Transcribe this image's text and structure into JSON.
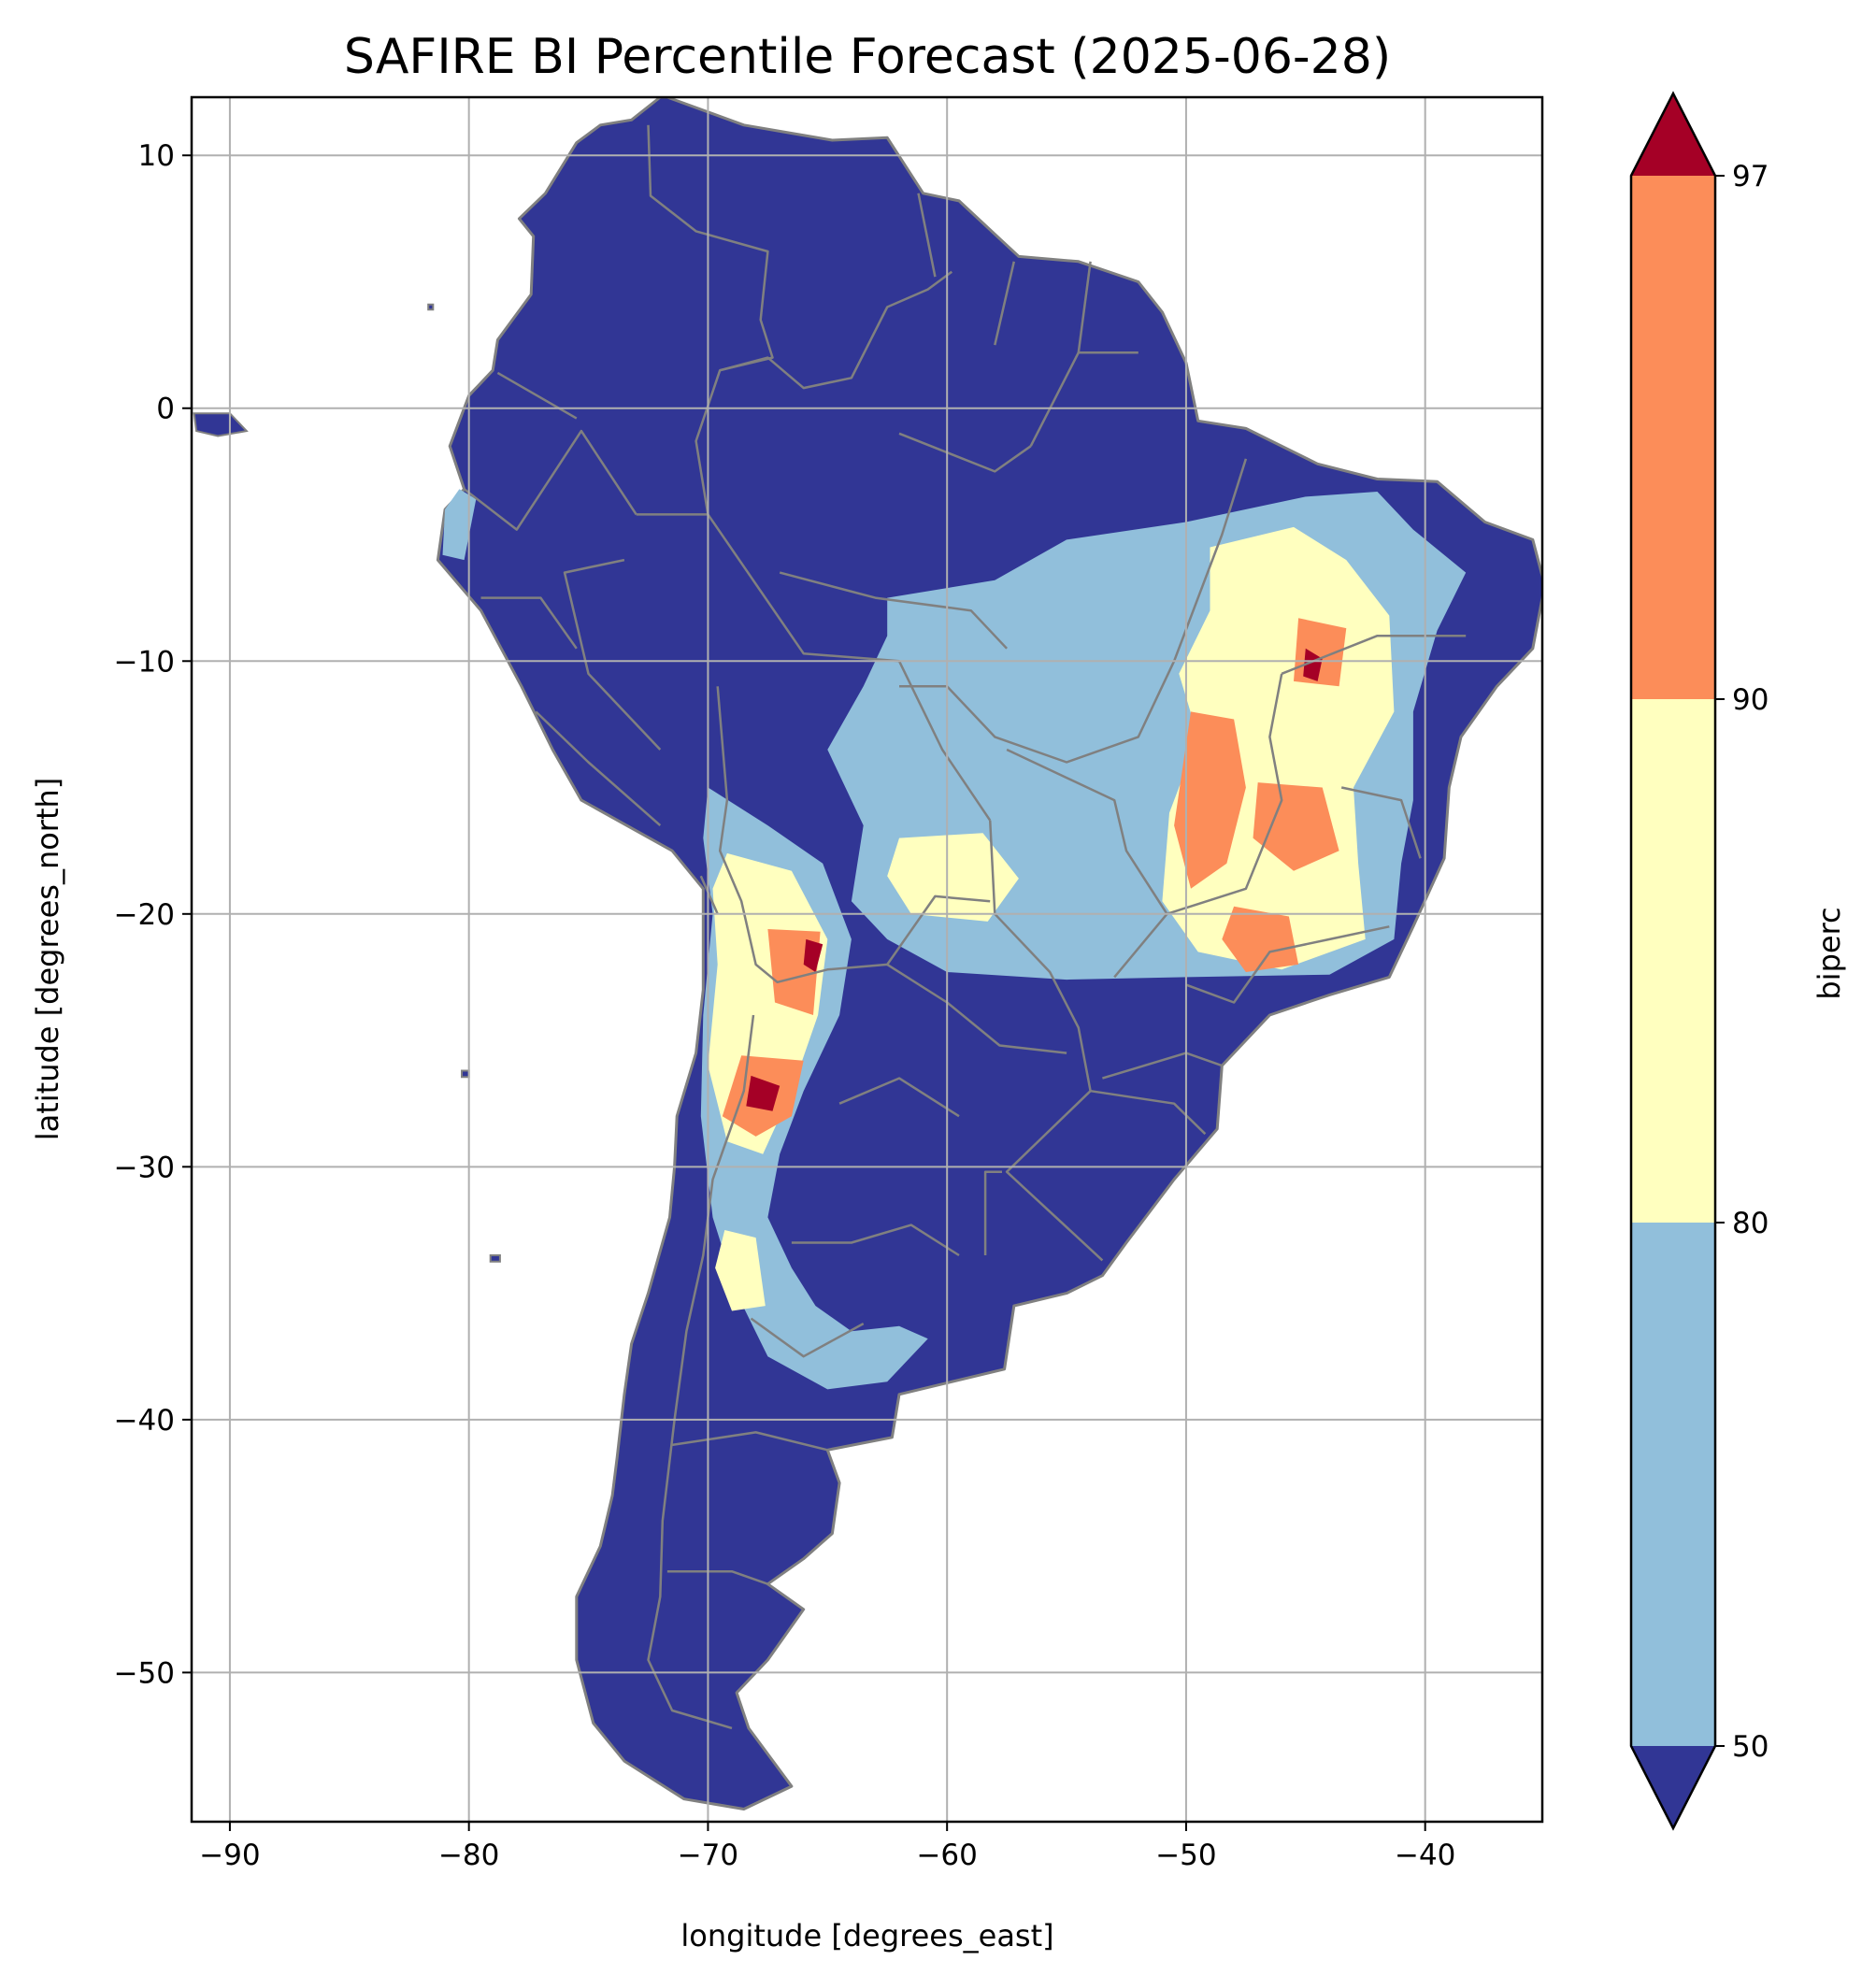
{
  "title": "SAFIRE BI Percentile Forecast (2025-06-28)",
  "map": {
    "xlabel": "longitude [degrees_east]",
    "ylabel": "latitude [degrees_north]",
    "lon_range": [
      -91.6,
      -35.1
    ],
    "lat_range": [
      -55.9,
      12.3
    ],
    "grid": true,
    "xticks": [
      {
        "value": -90,
        "label": "−90"
      },
      {
        "value": -80,
        "label": "−80"
      },
      {
        "value": -70,
        "label": "−70"
      },
      {
        "value": -60,
        "label": "−60"
      },
      {
        "value": -50,
        "label": "−50"
      },
      {
        "value": -40,
        "label": "−40"
      }
    ],
    "yticks": [
      {
        "value": 10,
        "label": "10"
      },
      {
        "value": 0,
        "label": "0"
      },
      {
        "value": -10,
        "label": "−10"
      },
      {
        "value": -20,
        "label": "−20"
      },
      {
        "value": -30,
        "label": "−30"
      },
      {
        "value": -40,
        "label": "−40"
      },
      {
        "value": -50,
        "label": "−50"
      }
    ],
    "colors": {
      "below_50": "#313695",
      "50_80": "#91bfdb",
      "80_90": "#ffffbf",
      "90_97": "#fc8d59",
      "above_97": "#a50026",
      "borders": "#808080",
      "grid": "#b0b0b0"
    }
  },
  "colorbar": {
    "label": "biperc",
    "extend": "both",
    "ticks": [
      {
        "value": 50,
        "label": "50"
      },
      {
        "value": 80,
        "label": "80"
      },
      {
        "value": 90,
        "label": "90"
      },
      {
        "value": 97,
        "label": "97"
      }
    ]
  }
}
